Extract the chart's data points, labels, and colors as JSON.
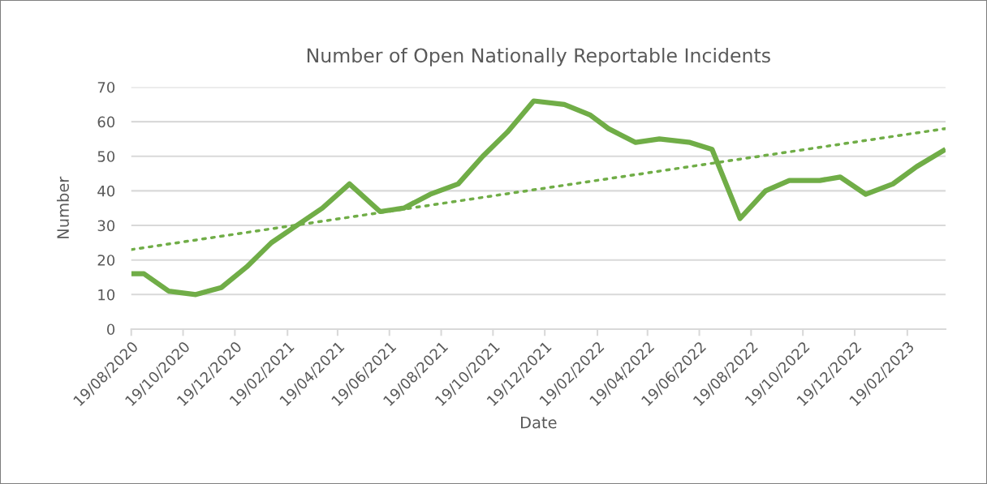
{
  "chart_data": {
    "type": "line",
    "title": "Number of Open Nationally Reportable Incidents",
    "xlabel": "Date",
    "ylabel": "Number",
    "x": [
      "2020-08-19",
      "2020-09-03",
      "2020-10-02",
      "2020-11-03",
      "2020-12-03",
      "2021-01-02",
      "2021-01-31",
      "2021-03-02",
      "2021-04-01",
      "2021-05-03",
      "2021-06-08",
      "2021-07-06",
      "2021-08-06",
      "2021-09-08",
      "2021-10-07",
      "2021-11-05",
      "2021-12-06",
      "2022-01-11",
      "2022-02-10",
      "2022-03-04",
      "2022-04-05",
      "2022-05-03",
      "2022-06-08",
      "2022-07-04",
      "2022-08-06",
      "2022-09-05",
      "2022-10-03",
      "2022-11-08",
      "2022-12-02",
      "2023-01-01",
      "2023-02-02",
      "2023-03-02",
      "2023-04-05"
    ],
    "series": [
      {
        "color": "#70ad47",
        "line_style": "solid",
        "values": [
          16,
          16,
          11,
          10,
          12,
          18,
          25,
          30,
          35,
          42,
          34,
          35,
          39,
          42,
          50,
          57,
          66,
          65,
          62,
          58,
          54,
          55,
          54,
          52,
          32,
          40,
          43,
          43,
          44,
          39,
          42,
          47,
          52
        ]
      },
      {
        "type": "line",
        "color": "#70ad47",
        "line_style": "dotted",
        "x": [
          "2020-08-19",
          "2023-04-05"
        ],
        "values": [
          23,
          58
        ]
      }
    ],
    "xlim": [
      "2020-08-19",
      "2023-04-05"
    ],
    "xticks": [
      {
        "value": "2020-08-19",
        "label": "19/08/2020"
      },
      {
        "value": "2020-10-19",
        "label": "19/10/2020"
      },
      {
        "value": "2020-12-19",
        "label": "19/12/2020"
      },
      {
        "value": "2021-02-19",
        "label": "19/02/2021"
      },
      {
        "value": "2021-04-19",
        "label": "19/04/2021"
      },
      {
        "value": "2021-06-19",
        "label": "19/06/2021"
      },
      {
        "value": "2021-08-19",
        "label": "19/08/2021"
      },
      {
        "value": "2021-10-19",
        "label": "19/10/2021"
      },
      {
        "value": "2021-12-19",
        "label": "19/12/2021"
      },
      {
        "value": "2022-02-19",
        "label": "19/02/2022"
      },
      {
        "value": "2022-04-19",
        "label": "19/04/2022"
      },
      {
        "value": "2022-06-19",
        "label": "19/06/2022"
      },
      {
        "value": "2022-08-19",
        "label": "19/08/2022"
      },
      {
        "value": "2022-10-19",
        "label": "19/10/2022"
      },
      {
        "value": "2022-12-19",
        "label": "19/12/2022"
      },
      {
        "value": "2023-02-19",
        "label": "19/02/2023"
      }
    ],
    "ylim": [
      0,
      70
    ],
    "yticks": [
      0,
      10,
      20,
      30,
      40,
      50,
      60,
      70
    ],
    "grid": "y",
    "legend": false,
    "marker": "none"
  }
}
